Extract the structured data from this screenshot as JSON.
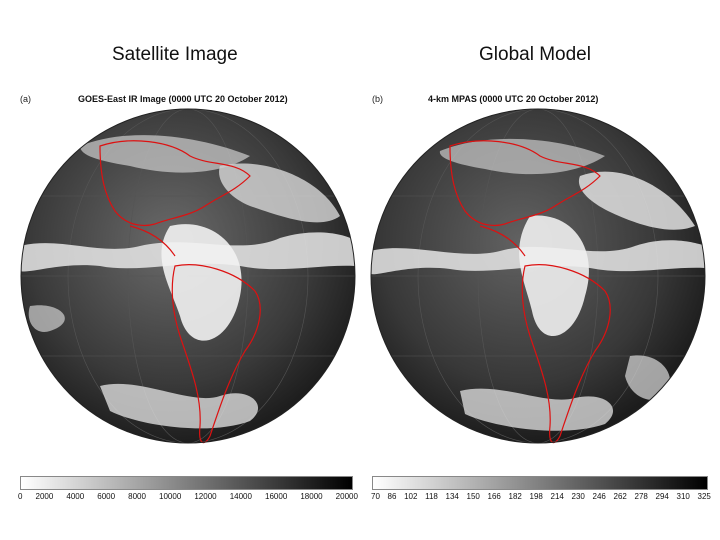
{
  "headings": {
    "left": "Satellite Image",
    "right": "Global Model"
  },
  "panel_a": {
    "label": "(a)",
    "title": "GOES-East IR Image (0000 UTC 20 October 2012)",
    "scale_ticks": [
      "0",
      "2000",
      "4000",
      "6000",
      "8000",
      "10000",
      "12000",
      "14000",
      "16000",
      "18000",
      "20000"
    ]
  },
  "panel_b": {
    "label": "(b)",
    "title": "4-km MPAS (0000 UTC 20 October 2012)",
    "scale_ticks": [
      "70",
      "86",
      "102",
      "118",
      "134",
      "150",
      "166",
      "182",
      "198",
      "214",
      "230",
      "246",
      "262",
      "278",
      "294",
      "310",
      "325"
    ]
  },
  "colors": {
    "coastline": "#dd1111",
    "background": "#ffffff",
    "globe_dark": "#333333",
    "cloud": "#f2f2f2"
  }
}
